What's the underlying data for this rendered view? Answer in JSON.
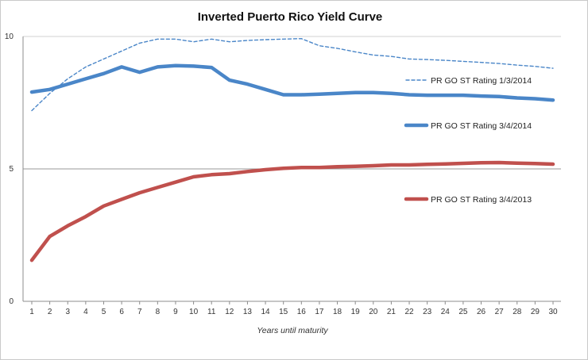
{
  "chart_data": {
    "type": "line",
    "title": "Inverted Puerto Rico Yield Curve",
    "xlabel": "Years until maturity",
    "ylabel": "",
    "x": [
      1,
      2,
      3,
      4,
      5,
      6,
      7,
      8,
      9,
      10,
      11,
      12,
      13,
      14,
      15,
      16,
      17,
      18,
      19,
      20,
      21,
      22,
      23,
      24,
      25,
      26,
      27,
      28,
      29,
      30
    ],
    "ylim": [
      0,
      10
    ],
    "yticks": [
      0,
      5,
      10
    ],
    "gridlines": [
      5
    ],
    "legend_position": "right",
    "series": [
      {
        "name": "PR GO ST Rating 1/3/2014",
        "color": "#4a86c8",
        "style": "dashed",
        "values": [
          7.2,
          7.85,
          8.4,
          8.85,
          9.15,
          9.45,
          9.75,
          9.9,
          9.9,
          9.8,
          9.9,
          9.8,
          9.85,
          9.88,
          9.9,
          9.92,
          9.65,
          9.55,
          9.42,
          9.3,
          9.25,
          9.15,
          9.13,
          9.1,
          9.06,
          9.02,
          8.98,
          8.92,
          8.87,
          8.8
        ]
      },
      {
        "name": "PR GO ST Rating 3/4/2014",
        "color": "#4a86c8",
        "style": "solid",
        "values": [
          7.9,
          8.0,
          8.2,
          8.4,
          8.6,
          8.85,
          8.65,
          8.85,
          8.9,
          8.88,
          8.83,
          8.35,
          8.2,
          8.0,
          7.8,
          7.8,
          7.82,
          7.85,
          7.88,
          7.88,
          7.85,
          7.8,
          7.78,
          7.78,
          7.78,
          7.75,
          7.73,
          7.68,
          7.65,
          7.6
        ]
      },
      {
        "name": "PR GO ST Rating 3/4/2013",
        "color": "#c0504d",
        "style": "solid",
        "values": [
          1.55,
          2.45,
          2.85,
          3.2,
          3.6,
          3.85,
          4.1,
          4.3,
          4.5,
          4.7,
          4.78,
          4.82,
          4.9,
          4.97,
          5.02,
          5.05,
          5.05,
          5.08,
          5.1,
          5.12,
          5.15,
          5.15,
          5.17,
          5.19,
          5.21,
          5.23,
          5.24,
          5.22,
          5.2,
          5.18
        ]
      }
    ]
  }
}
